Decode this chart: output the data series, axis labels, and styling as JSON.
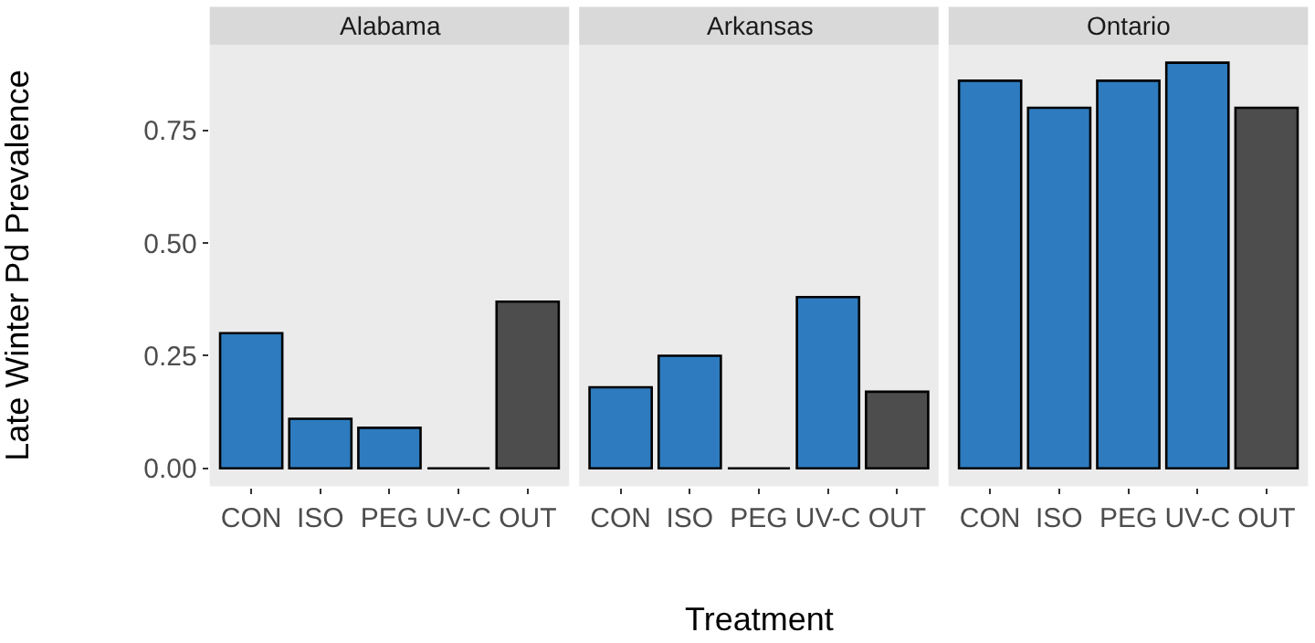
{
  "chart_data": [
    {
      "type": "bar",
      "title": "Alabama",
      "ylabel": "Late Winter Pd Prevalence",
      "categories": [
        "CON",
        "ISO",
        "PEG",
        "UV-C",
        "OUT"
      ],
      "values": [
        0.3,
        0.11,
        0.09,
        0,
        0.37
      ],
      "colors": [
        "#2e7bbf",
        "#2e7bbf",
        "#2e7bbf",
        "#000000",
        "#4d4d4d"
      ],
      "ylim": [
        -0.04,
        0.94
      ],
      "yticks": [
        {
          "value": 0,
          "label": "0.00"
        },
        {
          "value": 0.25,
          "label": "0.25"
        },
        {
          "value": 0.5,
          "label": "0.50"
        },
        {
          "value": 0.75,
          "label": "0.75"
        }
      ],
      "grid": false
    },
    {
      "type": "bar",
      "title": "Arkansas",
      "xlabel": "Treatment",
      "categories": [
        "CON",
        "ISO",
        "PEG",
        "UV-C",
        "OUT"
      ],
      "values": [
        0.18,
        0.25,
        0,
        0.38,
        0.17
      ],
      "colors": [
        "#2e7bbf",
        "#2e7bbf",
        "#000000",
        "#2e7bbf",
        "#4d4d4d"
      ],
      "ylim": [
        -0.04,
        0.94
      ],
      "tick_labels": "x",
      "grid": false
    },
    {
      "type": "bar",
      "title": "Ontario",
      "categories": [
        "CON",
        "ISO",
        "PEG",
        "UV-C",
        "OUT"
      ],
      "values": [
        0.86,
        0.8,
        0.86,
        0.9,
        0.8
      ],
      "colors": [
        "#2e7bbf",
        "#2e7bbf",
        "#2e7bbf",
        "#2e7bbf",
        "#4d4d4d"
      ],
      "ylim": [
        -0.04,
        0.94
      ],
      "tick_labels": "x",
      "grid": false
    }
  ]
}
